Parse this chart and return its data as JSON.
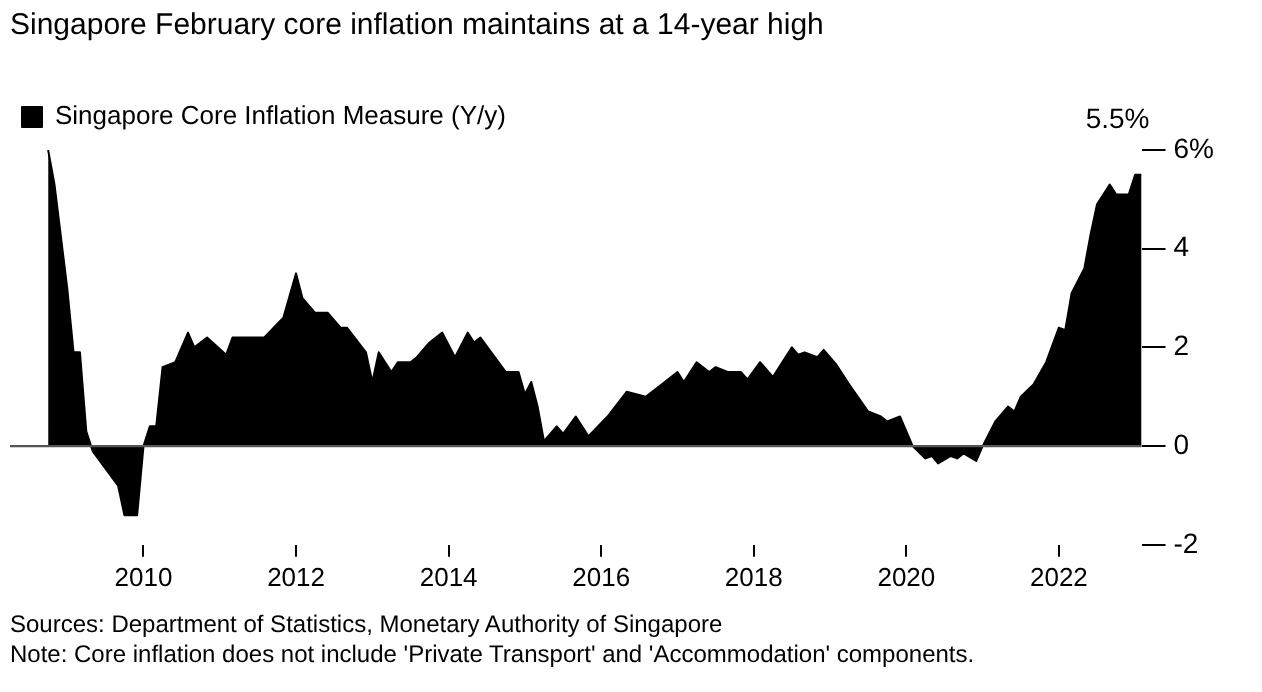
{
  "chart_data": {
    "type": "area",
    "title": "Singapore February core inflation maintains at a 14-year high",
    "x": [
      "2008-10",
      "2008-11",
      "2009-01",
      "2009-02",
      "2009-03",
      "2009-04",
      "2009-05",
      "2009-09",
      "2009-10",
      "2009-12",
      "2010-01",
      "2010-02",
      "2010-03",
      "2010-04",
      "2010-06",
      "2010-08",
      "2010-09",
      "2010-11",
      "2011-02",
      "2011-03",
      "2011-05",
      "2011-08",
      "2011-11",
      "2012-01",
      "2012-02",
      "2012-04",
      "2012-06",
      "2012-08",
      "2012-09",
      "2012-12",
      "2013-01",
      "2013-02",
      "2013-04",
      "2013-05",
      "2013-07",
      "2013-08",
      "2013-10",
      "2013-12",
      "2014-02",
      "2014-04",
      "2014-05",
      "2014-06",
      "2014-10",
      "2014-12",
      "2015-01",
      "2015-02",
      "2015-03",
      "2015-04",
      "2015-06",
      "2015-07",
      "2015-09",
      "2015-11",
      "2016-02",
      "2016-05",
      "2016-08",
      "2016-11",
      "2017-01",
      "2017-02",
      "2017-04",
      "2017-06",
      "2017-07",
      "2017-09",
      "2017-11",
      "2017-12",
      "2018-02",
      "2018-04",
      "2018-07",
      "2018-08",
      "2018-09",
      "2018-11",
      "2018-12",
      "2019-02",
      "2019-04",
      "2019-07",
      "2019-09",
      "2019-10",
      "2019-12",
      "2020-02",
      "2020-04",
      "2020-05",
      "2020-06",
      "2020-08",
      "2020-09",
      "2020-10",
      "2020-12",
      "2021-01",
      "2021-03",
      "2021-05",
      "2021-06",
      "2021-07",
      "2021-09",
      "2021-11",
      "2022-01",
      "2022-02",
      "2022-03",
      "2022-05",
      "2022-06",
      "2022-07",
      "2022-09",
      "2022-10",
      "2022-12",
      "2023-01",
      "2023-02"
    ],
    "series": [
      {
        "name": "Singapore Core Inflation Measure (Y/y)",
        "color": "#000000",
        "values": [
          6.0,
          5.3,
          3.2,
          1.9,
          1.9,
          0.3,
          -0.1,
          -0.8,
          -1.4,
          -1.4,
          0.0,
          0.4,
          0.4,
          1.6,
          1.7,
          2.3,
          2.0,
          2.2,
          1.85,
          2.2,
          2.2,
          2.2,
          2.6,
          3.5,
          3.0,
          2.7,
          2.7,
          2.4,
          2.4,
          1.9,
          1.3,
          1.9,
          1.5,
          1.7,
          1.7,
          1.8,
          2.1,
          2.3,
          1.8,
          2.3,
          2.1,
          2.2,
          1.5,
          1.5,
          1.05,
          1.3,
          0.8,
          0.1,
          0.4,
          0.25,
          0.6,
          0.2,
          0.6,
          1.1,
          1.0,
          1.3,
          1.5,
          1.3,
          1.7,
          1.5,
          1.6,
          1.5,
          1.5,
          1.35,
          1.7,
          1.4,
          2.0,
          1.85,
          1.9,
          1.8,
          1.95,
          1.65,
          1.25,
          0.7,
          0.6,
          0.5,
          0.6,
          0.0,
          -0.25,
          -0.2,
          -0.35,
          -0.2,
          -0.25,
          -0.15,
          -0.3,
          0.0,
          0.5,
          0.8,
          0.7,
          1.0,
          1.25,
          1.7,
          2.4,
          2.35,
          3.1,
          3.6,
          4.3,
          4.9,
          5.3,
          5.1,
          5.1,
          5.5,
          5.5
        ]
      }
    ],
    "xlim": [
      "2008-04",
      "2023-02"
    ],
    "xticks": [
      "2010",
      "2012",
      "2014",
      "2016",
      "2018",
      "2020",
      "2022"
    ],
    "ylim": [
      -2,
      6
    ],
    "yticks": [
      -2,
      0,
      2,
      4,
      {
        "value": 6,
        "label": "6%"
      }
    ],
    "ref_lines": [
      {
        "axis": "y",
        "value": 0,
        "color": "#555555"
      }
    ],
    "legend": "top left",
    "grid": false,
    "annotations": [
      {
        "text": "5.5%",
        "x": "2023-02",
        "y": 5.5
      },
      "Sources: Department of Statistics, Monetary Authority of Singapore",
      "Note: Core inflation does not include 'Private Transport' and 'Accommodation' components."
    ]
  }
}
